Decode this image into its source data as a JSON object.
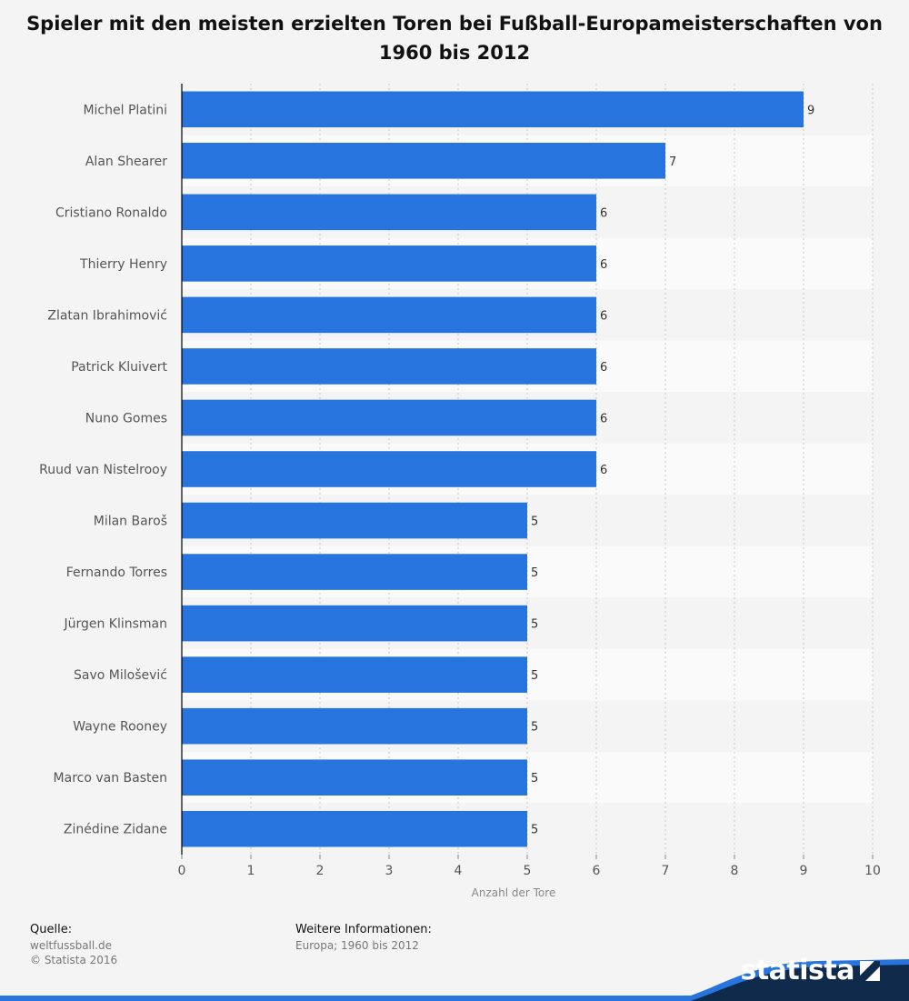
{
  "title": "Spieler mit den meisten erzielten Toren bei Fußball-Europameisterschaften von 1960 bis 2012",
  "chart_data": {
    "type": "bar",
    "orientation": "horizontal",
    "categories": [
      "Michel Platini",
      "Alan Shearer",
      "Cristiano Ronaldo",
      "Thierry Henry",
      "Zlatan Ibrahimović",
      "Patrick Kluivert",
      "Nuno Gomes",
      "Ruud van Nistelrooy",
      "Milan Baroš",
      "Fernando Torres",
      "Jürgen Klinsman",
      "Savo Milošević",
      "Wayne Rooney",
      "Marco van Basten",
      "Zinédine Zidane"
    ],
    "values": [
      9,
      7,
      6,
      6,
      6,
      6,
      6,
      6,
      5,
      5,
      5,
      5,
      5,
      5,
      5
    ],
    "xlabel": "Anzahl der Tore",
    "ylabel": "",
    "xlim": [
      0,
      10
    ],
    "xticks": [
      0,
      1,
      2,
      3,
      4,
      5,
      6,
      7,
      8,
      9,
      10
    ],
    "grid": true,
    "bar_color": "#2874de",
    "data_labels": true
  },
  "footer": {
    "source_label": "Quelle:",
    "source_lines": [
      "weltfussball.de",
      "© Statista 2016"
    ],
    "info_label": "Weitere Informationen:",
    "info_lines": [
      "Europa; 1960 bis 2012"
    ]
  },
  "brand": {
    "name": "statista",
    "color_dark": "#0f2a4a",
    "color_accent": "#2874de"
  }
}
